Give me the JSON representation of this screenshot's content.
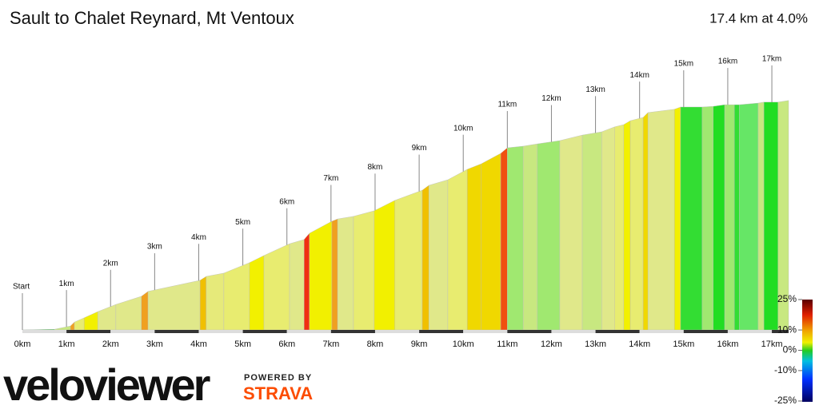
{
  "chart_data": {
    "type": "area",
    "title": "Sault to Chalet Reynard, Mt Ventoux",
    "subtitle": "17.4 km at 4.0%",
    "x": [
      0,
      0.73,
      1.09,
      1.18,
      1.4,
      1.71,
      2.12,
      2.7,
      2.85,
      4.03,
      4.17,
      4.57,
      5.15,
      5.48,
      6.06,
      6.39,
      6.51,
      7.02,
      7.15,
      7.51,
      7.98,
      8.45,
      9.07,
      9.22,
      9.65,
      10.09,
      10.41,
      10.85,
      11.0,
      11.36,
      11.68,
      12.19,
      12.7,
      13.14,
      13.43,
      13.64,
      13.79,
      14.08,
      14.19,
      14.79,
      14.93,
      15.42,
      15.67,
      15.93,
      16.15,
      16.26,
      16.69,
      16.82,
      17.14,
      17.38
    ],
    "values": [
      765,
      767,
      777,
      789,
      802,
      821,
      843,
      868,
      883,
      917,
      929,
      939,
      971,
      993,
      1029,
      1042,
      1061,
      1098,
      1105,
      1113,
      1130,
      1162,
      1193,
      1208,
      1225,
      1257,
      1274,
      1306,
      1323,
      1328,
      1335,
      1345,
      1362,
      1372,
      1387,
      1394,
      1406,
      1416,
      1431,
      1441,
      1448,
      1448,
      1450,
      1455,
      1455,
      1455,
      1460,
      1463,
      1463,
      1468
    ],
    "segment_colors": [
      "#33cc33",
      "#c8e880",
      "#f0a020",
      "#e8ec70",
      "#f2f000",
      "#e0e88a",
      "#e0e88a",
      "#f0a020",
      "#e0e88a",
      "#f0c000",
      "#e6ea7a",
      "#e8ec70",
      "#f2f000",
      "#e8ec70",
      "#e0e88a",
      "#f03010",
      "#f2f000",
      "#f0a020",
      "#e0e88a",
      "#e8ec70",
      "#f2f000",
      "#e8ec70",
      "#f0c000",
      "#e0e88a",
      "#e8ec70",
      "#f0d800",
      "#f0d800",
      "#f05010",
      "#a0e870",
      "#c8e880",
      "#a0e870",
      "#e0e88a",
      "#c8e880",
      "#e0e88a",
      "#e8ec70",
      "#f2f000",
      "#e8ec70",
      "#f0d800",
      "#e0e88a",
      "#f2f000",
      "#33dd33",
      "#a0e870",
      "#22dd22",
      "#a0e870",
      "#33dd33",
      "#66e666",
      "#c8e880",
      "#22dd22",
      "#c8e880"
    ],
    "xlim": [
      0,
      17.38
    ],
    "ylim": [
      765,
      1465
    ],
    "xticks": [
      {
        "value": 0,
        "label": "0km"
      },
      {
        "value": 1,
        "label": "1km"
      },
      {
        "value": 2,
        "label": "2km"
      },
      {
        "value": 3,
        "label": "3km"
      },
      {
        "value": 4,
        "label": "4km"
      },
      {
        "value": 5,
        "label": "5km"
      },
      {
        "value": 6,
        "label": "6km"
      },
      {
        "value": 7,
        "label": "7km"
      },
      {
        "value": 8,
        "label": "8km"
      },
      {
        "value": 9,
        "label": "9km"
      },
      {
        "value": 10,
        "label": "10km"
      },
      {
        "value": 11,
        "label": "11km"
      },
      {
        "value": 12,
        "label": "12km"
      },
      {
        "value": 13,
        "label": "13km"
      },
      {
        "value": 14,
        "label": "14km"
      },
      {
        "value": 15,
        "label": "15km"
      },
      {
        "value": 16,
        "label": "16km"
      },
      {
        "value": 17,
        "label": "17km"
      }
    ],
    "km_markers": [
      {
        "value": 0,
        "label": "Start"
      },
      {
        "value": 1,
        "label": "1km"
      },
      {
        "value": 2,
        "label": "2km"
      },
      {
        "value": 3,
        "label": "3km"
      },
      {
        "value": 4,
        "label": "4km"
      },
      {
        "value": 5,
        "label": "5km"
      },
      {
        "value": 6,
        "label": "6km"
      },
      {
        "value": 7,
        "label": "7km"
      },
      {
        "value": 8,
        "label": "8km"
      },
      {
        "value": 9,
        "label": "9km"
      },
      {
        "value": 10,
        "label": "10km"
      },
      {
        "value": 11,
        "label": "11km"
      },
      {
        "value": 12,
        "label": "12km"
      },
      {
        "value": 13,
        "label": "13km"
      },
      {
        "value": 14,
        "label": "14km"
      },
      {
        "value": 15,
        "label": "15km"
      },
      {
        "value": 16,
        "label": "16km"
      },
      {
        "value": 17,
        "label": "17km"
      }
    ],
    "color_scale": {
      "lim": [
        -25,
        25
      ],
      "ticks": [
        {
          "value": 25,
          "label": "25%"
        },
        {
          "value": 10,
          "label": "10%"
        },
        {
          "value": 0,
          "label": "0%"
        },
        {
          "value": -10,
          "label": "-10%"
        },
        {
          "value": -25,
          "label": "-25%"
        }
      ]
    },
    "logo": {
      "brand": "veloviewer",
      "powered_by": "POWERED BY",
      "partner": "STRAVA"
    }
  }
}
